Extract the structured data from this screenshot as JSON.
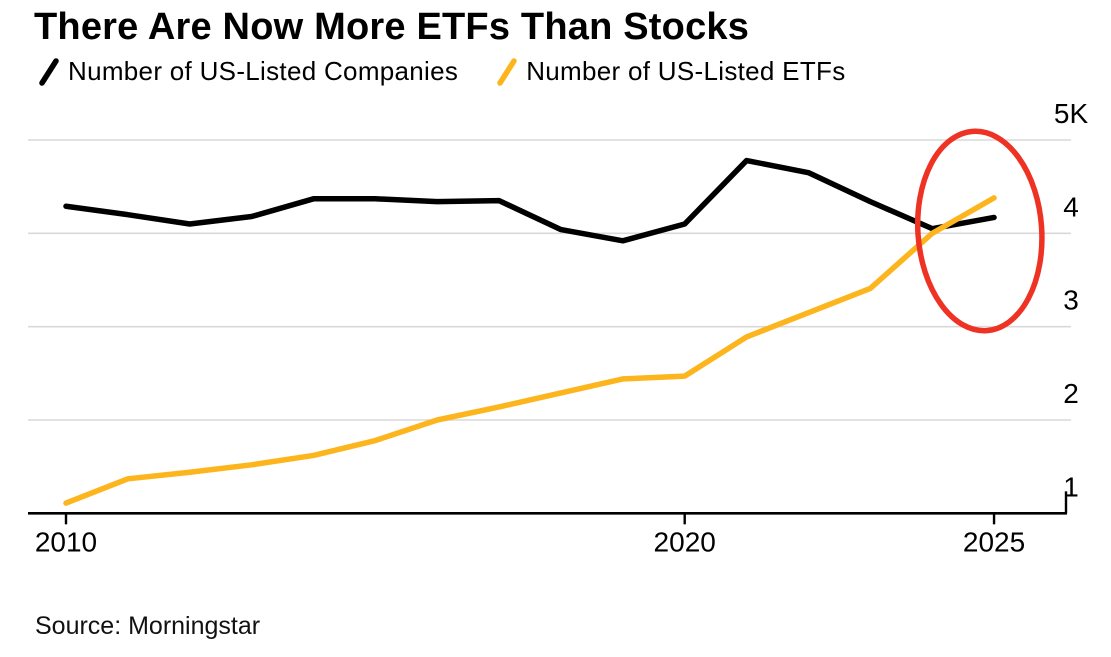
{
  "title": "There Are Now More ETFs Than Stocks",
  "legend": [
    {
      "label": "Number of US-Listed Companies",
      "color": "#000000"
    },
    {
      "label": "Number of US-Listed ETFs",
      "color": "#fdb51d"
    }
  ],
  "source": "Source: Morningstar",
  "colors": {
    "companies_line": "#000000",
    "etfs_line": "#fdb51d",
    "annotation_red": "#ee3224",
    "gridline": "#d9d9d9",
    "axis": "#000000"
  },
  "chart_data": {
    "type": "line",
    "x": [
      2010,
      2011,
      2012,
      2013,
      2014,
      2015,
      2016,
      2017,
      2018,
      2019,
      2020,
      2021,
      2022,
      2023,
      2024,
      2025
    ],
    "series": [
      {
        "name": "Number of US-Listed Companies",
        "color": "#000000",
        "values": [
          4290,
          4200,
          4100,
          4180,
          4370,
          4370,
          4340,
          4350,
          4040,
          3920,
          4100,
          4780,
          4650,
          4340,
          4050,
          4170
        ]
      },
      {
        "name": "Number of US-Listed ETFs",
        "color": "#fdb51d",
        "values": [
          1110,
          1370,
          1440,
          1520,
          1620,
          1780,
          2000,
          2140,
          2290,
          2440,
          2470,
          2890,
          3150,
          3410,
          4000,
          4380
        ]
      }
    ],
    "xticks": [
      {
        "label": "2010",
        "value": 2010
      },
      {
        "label": "2020",
        "value": 2020
      },
      {
        "label": "2025",
        "value": 2025
      }
    ],
    "yticks": [
      {
        "label": "5K",
        "value": 5000
      },
      {
        "label": "4",
        "value": 4000
      },
      {
        "label": "3",
        "value": 3000
      },
      {
        "label": "2",
        "value": 2000
      },
      {
        "label": "1",
        "value": 1000
      }
    ],
    "ylim": [
      1000,
      5000
    ],
    "xlim": [
      2010,
      2025
    ],
    "grid": true,
    "legend_position": "top",
    "annotation": {
      "shape": "ellipse",
      "meaning": "crossover: ETFs overtake listed companies",
      "cx_year": 2024.77,
      "cy_value": 4025,
      "rx_years": 1.0,
      "ry_value": 1070,
      "rotate_deg": -4,
      "color": "#ee3224"
    }
  }
}
